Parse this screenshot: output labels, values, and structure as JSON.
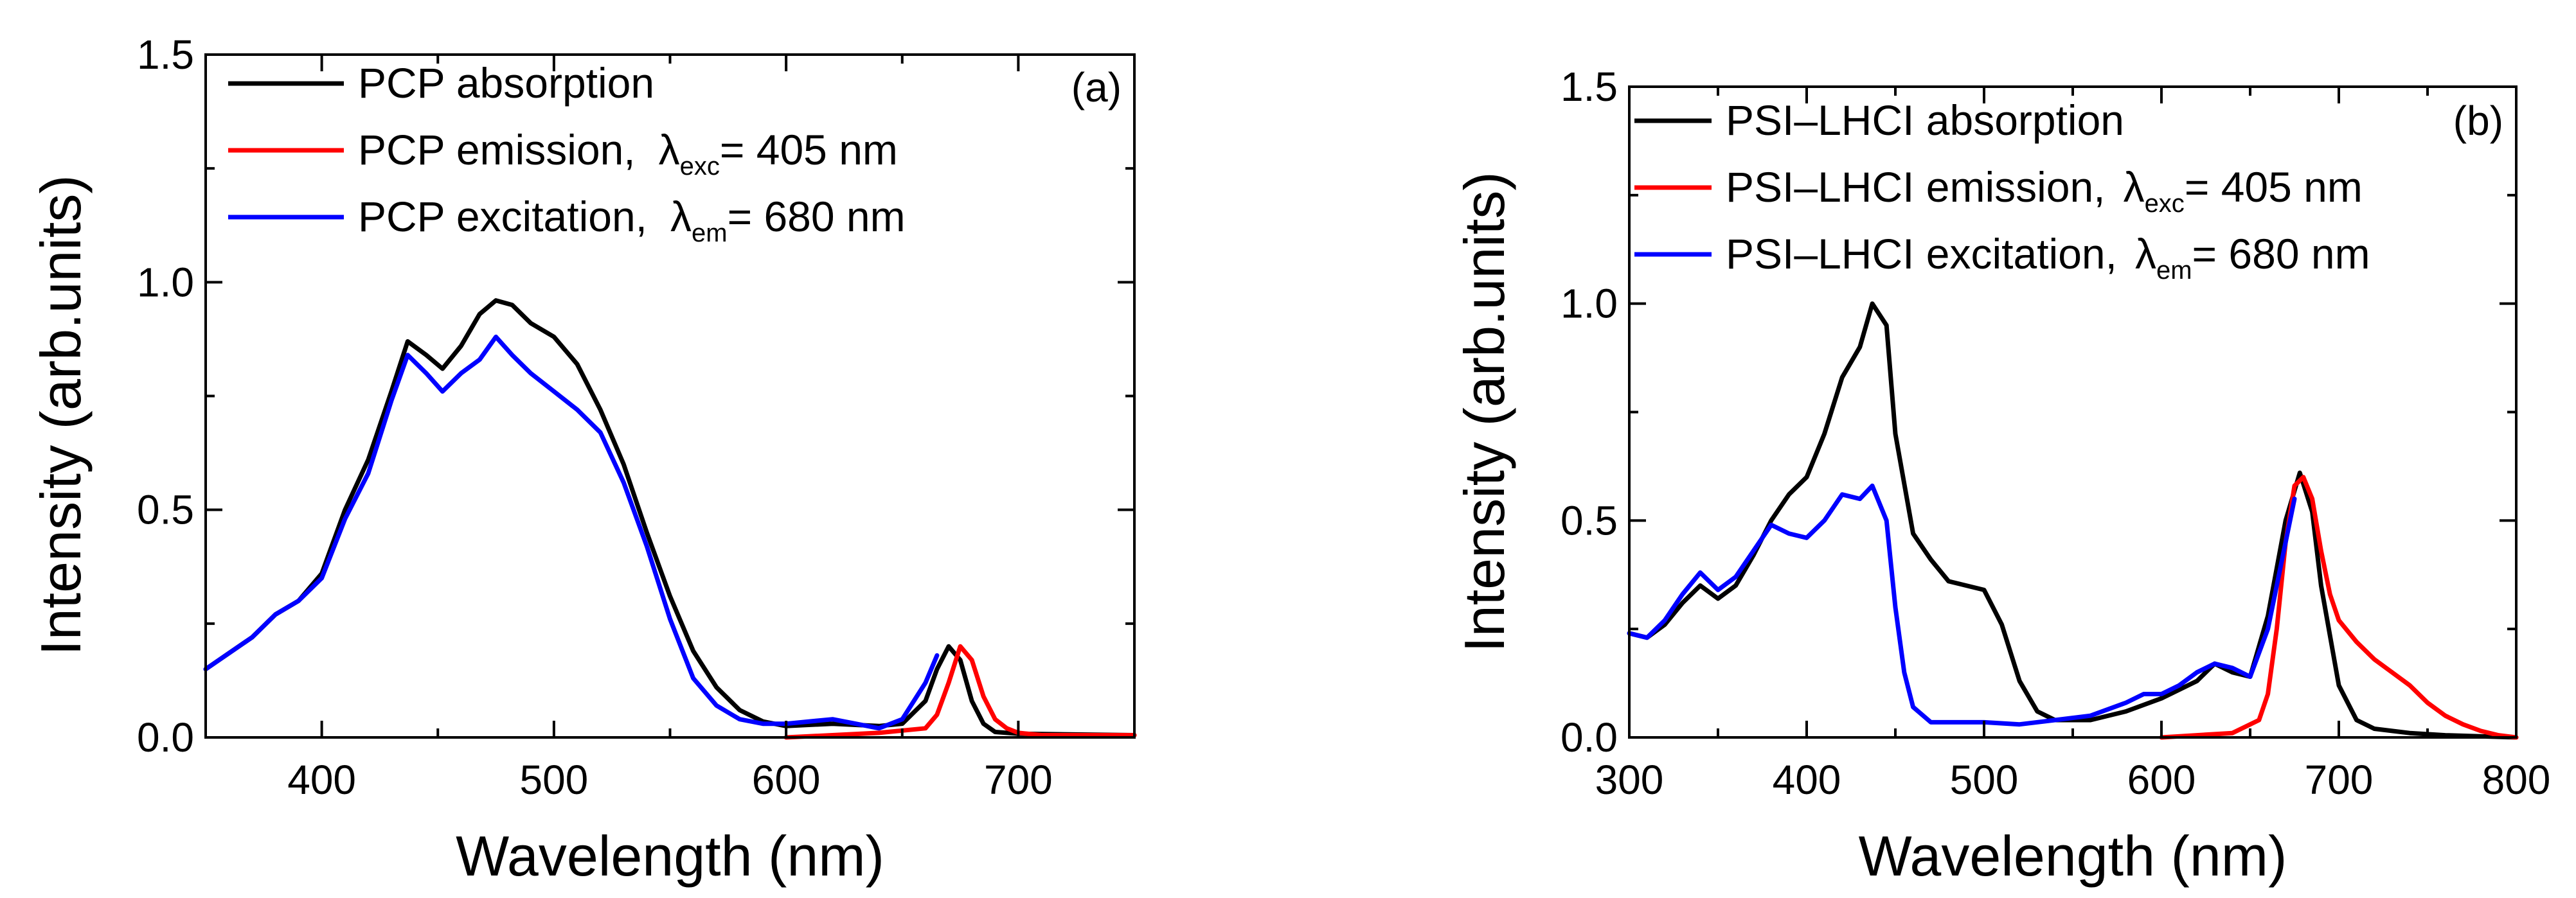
{
  "colors": {
    "absorption": "#000000",
    "emission": "#ff0000",
    "excitation": "#0000ff"
  },
  "chart_data": [
    {
      "type": "line",
      "panel_label": "(a)",
      "xlabel": "Wavelength (nm)",
      "ylabel": "Intensity (arb.units)",
      "xlim": [
        350,
        750
      ],
      "ylim": [
        0,
        1.5
      ],
      "xticks": [
        400,
        500,
        600,
        700
      ],
      "yticks": [
        0.0,
        0.5,
        1.0,
        1.5
      ],
      "ytick_labels": [
        "0.0",
        "0.5",
        "1.0",
        "1.5"
      ],
      "legend_position": "top-left",
      "legend": [
        {
          "prefix": "PCP absorption",
          "symbol": "",
          "sub": "",
          "suffix": ""
        },
        {
          "prefix": "PCP emission,",
          "symbol": "λ",
          "sub": "exc",
          "suffix": "= 405 nm"
        },
        {
          "prefix": "PCP excitation,",
          "symbol": "λ",
          "sub": "em",
          "suffix": "= 680 nm"
        }
      ],
      "series": [
        {
          "name": "PCP absorption",
          "color_key": "absorption",
          "x": [
            350,
            370,
            380,
            390,
            400,
            410,
            420,
            430,
            437,
            445,
            452,
            460,
            468,
            475,
            482,
            490,
            500,
            510,
            520,
            530,
            540,
            550,
            560,
            570,
            580,
            590,
            600,
            620,
            640,
            650,
            660,
            665,
            670,
            675,
            680,
            685,
            690,
            700,
            750
          ],
          "y": [
            0.15,
            0.22,
            0.27,
            0.3,
            0.36,
            0.5,
            0.61,
            0.76,
            0.87,
            0.84,
            0.81,
            0.86,
            0.93,
            0.96,
            0.95,
            0.91,
            0.88,
            0.82,
            0.72,
            0.6,
            0.45,
            0.31,
            0.19,
            0.11,
            0.06,
            0.035,
            0.025,
            0.03,
            0.025,
            0.03,
            0.08,
            0.15,
            0.2,
            0.17,
            0.08,
            0.03,
            0.012,
            0.008,
            0.005
          ]
        },
        {
          "name": "PCP emission, λexc = 405 nm",
          "color_key": "emission",
          "x": [
            600,
            640,
            660,
            665,
            670,
            675,
            680,
            685,
            690,
            695,
            700,
            710,
            750
          ],
          "y": [
            0.0,
            0.01,
            0.02,
            0.05,
            0.12,
            0.2,
            0.17,
            0.09,
            0.04,
            0.02,
            0.01,
            0.005,
            0.005
          ]
        },
        {
          "name": "PCP excitation, λem = 680 nm",
          "color_key": "excitation",
          "x": [
            350,
            370,
            380,
            390,
            400,
            410,
            420,
            430,
            437,
            445,
            452,
            460,
            468,
            475,
            482,
            490,
            500,
            510,
            520,
            530,
            540,
            550,
            560,
            570,
            580,
            590,
            600,
            620,
            630,
            640,
            650,
            660,
            665
          ],
          "y": [
            0.15,
            0.22,
            0.27,
            0.3,
            0.35,
            0.48,
            0.58,
            0.74,
            0.84,
            0.8,
            0.76,
            0.8,
            0.83,
            0.88,
            0.84,
            0.8,
            0.76,
            0.72,
            0.67,
            0.56,
            0.42,
            0.26,
            0.13,
            0.07,
            0.04,
            0.03,
            0.03,
            0.04,
            0.03,
            0.02,
            0.04,
            0.12,
            0.18
          ]
        }
      ]
    },
    {
      "type": "line",
      "panel_label": "(b)",
      "xlabel": "Wavelength (nm)",
      "ylabel": "Intensity (arb.units)",
      "xlim": [
        300,
        800
      ],
      "ylim": [
        0,
        1.5
      ],
      "xticks": [
        300,
        400,
        500,
        600,
        700,
        800
      ],
      "yticks": [
        0.0,
        0.5,
        1.0,
        1.5
      ],
      "ytick_labels": [
        "0.0",
        "0.5",
        "1.0",
        "1.5"
      ],
      "legend_position": "top-left",
      "legend": [
        {
          "prefix": "PSI–LHCI absorption",
          "symbol": "",
          "sub": "",
          "suffix": ""
        },
        {
          "prefix": "PSI–LHCI emission,",
          "symbol": "λ",
          "sub": "exc",
          "suffix": "= 405 nm"
        },
        {
          "prefix": "PSI–LHCI excitation,",
          "symbol": "λ",
          "sub": "em",
          "suffix": "= 680 nm"
        }
      ],
      "series": [
        {
          "name": "PSI–LHCI absorption",
          "color_key": "absorption",
          "x": [
            300,
            310,
            320,
            330,
            340,
            350,
            360,
            370,
            380,
            390,
            400,
            410,
            420,
            430,
            437,
            445,
            450,
            460,
            470,
            480,
            490,
            500,
            510,
            520,
            530,
            540,
            560,
            580,
            600,
            620,
            630,
            640,
            650,
            660,
            670,
            678,
            685,
            690,
            700,
            710,
            720,
            740,
            760,
            800
          ],
          "y": [
            0.24,
            0.23,
            0.26,
            0.31,
            0.35,
            0.32,
            0.35,
            0.42,
            0.5,
            0.56,
            0.6,
            0.7,
            0.83,
            0.9,
            1.0,
            0.95,
            0.7,
            0.47,
            0.41,
            0.36,
            0.35,
            0.34,
            0.26,
            0.13,
            0.06,
            0.04,
            0.04,
            0.06,
            0.09,
            0.13,
            0.17,
            0.15,
            0.14,
            0.28,
            0.5,
            0.61,
            0.52,
            0.35,
            0.12,
            0.04,
            0.02,
            0.01,
            0.005,
            0.0
          ]
        },
        {
          "name": "PSI–LHCI emission, λexc = 405 nm",
          "color_key": "emission",
          "x": [
            600,
            640,
            655,
            660,
            665,
            670,
            675,
            680,
            685,
            690,
            695,
            700,
            710,
            720,
            730,
            740,
            750,
            760,
            770,
            780,
            790,
            800
          ],
          "y": [
            0.0,
            0.01,
            0.04,
            0.1,
            0.25,
            0.45,
            0.58,
            0.6,
            0.55,
            0.43,
            0.33,
            0.27,
            0.22,
            0.18,
            0.15,
            0.12,
            0.08,
            0.05,
            0.03,
            0.015,
            0.005,
            0.0
          ]
        },
        {
          "name": "PSI–LHCI excitation, λem = 680 nm",
          "color_key": "excitation",
          "x": [
            300,
            310,
            320,
            330,
            340,
            350,
            360,
            370,
            380,
            390,
            400,
            410,
            420,
            430,
            437,
            445,
            450,
            455,
            460,
            470,
            480,
            500,
            520,
            540,
            560,
            580,
            590,
            600,
            610,
            620,
            630,
            640,
            650,
            660,
            670,
            675
          ],
          "y": [
            0.24,
            0.23,
            0.27,
            0.33,
            0.38,
            0.34,
            0.37,
            0.43,
            0.49,
            0.47,
            0.46,
            0.5,
            0.56,
            0.55,
            0.58,
            0.5,
            0.3,
            0.15,
            0.07,
            0.035,
            0.035,
            0.035,
            0.03,
            0.04,
            0.05,
            0.08,
            0.1,
            0.1,
            0.12,
            0.15,
            0.17,
            0.16,
            0.14,
            0.25,
            0.45,
            0.55
          ]
        }
      ]
    }
  ]
}
